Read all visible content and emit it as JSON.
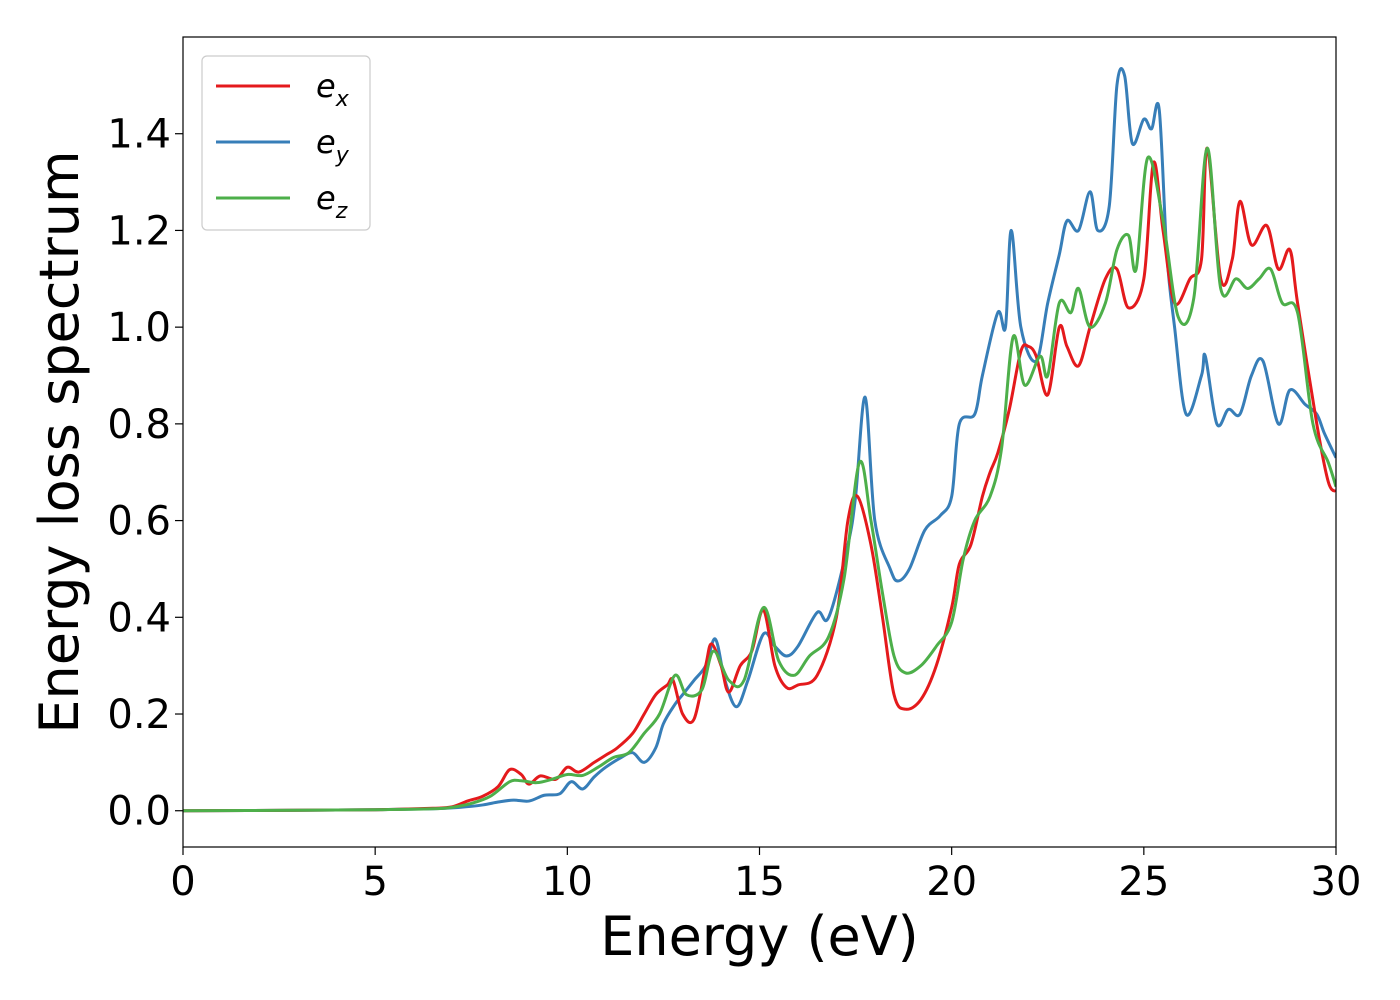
{
  "chart_data": {
    "type": "line",
    "xlabel": "Energy (eV)",
    "ylabel": "Energy loss spectrum",
    "xlim": [
      0,
      30
    ],
    "ylim": [
      -0.075,
      1.6
    ],
    "x_ticks": [
      "0",
      "5",
      "10",
      "15",
      "20",
      "25",
      "30"
    ],
    "y_ticks": [
      "0.0",
      "0.2",
      "0.4",
      "0.6",
      "0.8",
      "1.0",
      "1.2",
      "1.4"
    ],
    "grid": false,
    "legend_position": "top-left",
    "series": [
      {
        "name": "e_x",
        "label_base": "e",
        "label_sub": "x",
        "color": "#e41a1c",
        "points": [
          [
            0,
            0.0
          ],
          [
            3,
            0.001
          ],
          [
            5,
            0.002
          ],
          [
            6.5,
            0.005
          ],
          [
            7,
            0.008
          ],
          [
            7.4,
            0.02
          ],
          [
            7.8,
            0.03
          ],
          [
            8.2,
            0.05
          ],
          [
            8.5,
            0.085
          ],
          [
            8.8,
            0.075
          ],
          [
            9,
            0.055
          ],
          [
            9.3,
            0.072
          ],
          [
            9.7,
            0.065
          ],
          [
            10,
            0.09
          ],
          [
            10.3,
            0.08
          ],
          [
            10.7,
            0.1
          ],
          [
            11,
            0.115
          ],
          [
            11.3,
            0.13
          ],
          [
            11.7,
            0.16
          ],
          [
            12,
            0.2
          ],
          [
            12.3,
            0.24
          ],
          [
            12.6,
            0.26
          ],
          [
            12.75,
            0.27
          ],
          [
            13,
            0.2
          ],
          [
            13.3,
            0.19
          ],
          [
            13.6,
            0.3
          ],
          [
            13.75,
            0.345
          ],
          [
            14,
            0.3
          ],
          [
            14.2,
            0.245
          ],
          [
            14.5,
            0.3
          ],
          [
            14.8,
            0.33
          ],
          [
            15.1,
            0.415
          ],
          [
            15.4,
            0.3
          ],
          [
            15.7,
            0.255
          ],
          [
            16,
            0.26
          ],
          [
            16.5,
            0.28
          ],
          [
            17,
            0.4
          ],
          [
            17.3,
            0.6
          ],
          [
            17.55,
            0.65
          ],
          [
            17.9,
            0.55
          ],
          [
            18.2,
            0.4
          ],
          [
            18.5,
            0.24
          ],
          [
            18.8,
            0.21
          ],
          [
            19.2,
            0.23
          ],
          [
            19.6,
            0.3
          ],
          [
            20,
            0.42
          ],
          [
            20.2,
            0.51
          ],
          [
            20.5,
            0.55
          ],
          [
            20.8,
            0.65
          ],
          [
            21,
            0.7
          ],
          [
            21.2,
            0.74
          ],
          [
            21.5,
            0.83
          ],
          [
            21.8,
            0.95
          ],
          [
            22,
            0.96
          ],
          [
            22.2,
            0.94
          ],
          [
            22.5,
            0.86
          ],
          [
            22.8,
            1.0
          ],
          [
            23,
            0.96
          ],
          [
            23.3,
            0.92
          ],
          [
            23.6,
            1.0
          ],
          [
            24,
            1.1
          ],
          [
            24.3,
            1.12
          ],
          [
            24.6,
            1.04
          ],
          [
            25,
            1.1
          ],
          [
            25.25,
            1.34
          ],
          [
            25.5,
            1.2
          ],
          [
            25.8,
            1.05
          ],
          [
            26.2,
            1.1
          ],
          [
            26.5,
            1.14
          ],
          [
            26.65,
            1.37
          ],
          [
            27,
            1.1
          ],
          [
            27.3,
            1.14
          ],
          [
            27.5,
            1.26
          ],
          [
            27.8,
            1.17
          ],
          [
            28.2,
            1.21
          ],
          [
            28.5,
            1.12
          ],
          [
            28.8,
            1.16
          ],
          [
            29,
            1.05
          ],
          [
            29.5,
            0.8
          ],
          [
            29.8,
            0.68
          ],
          [
            30,
            0.66
          ]
        ]
      },
      {
        "name": "e_y",
        "label_base": "e",
        "label_sub": "y",
        "color": "#377eb8",
        "points": [
          [
            0,
            0.0
          ],
          [
            3,
            0.001
          ],
          [
            5,
            0.002
          ],
          [
            6.5,
            0.004
          ],
          [
            7.2,
            0.007
          ],
          [
            7.8,
            0.012
          ],
          [
            8.2,
            0.018
          ],
          [
            8.6,
            0.022
          ],
          [
            9,
            0.02
          ],
          [
            9.4,
            0.032
          ],
          [
            9.8,
            0.035
          ],
          [
            10.1,
            0.06
          ],
          [
            10.4,
            0.045
          ],
          [
            10.7,
            0.07
          ],
          [
            11,
            0.09
          ],
          [
            11.4,
            0.11
          ],
          [
            11.7,
            0.12
          ],
          [
            12,
            0.1
          ],
          [
            12.3,
            0.13
          ],
          [
            12.5,
            0.18
          ],
          [
            12.8,
            0.22
          ],
          [
            13,
            0.24
          ],
          [
            13.3,
            0.27
          ],
          [
            13.6,
            0.3
          ],
          [
            13.85,
            0.355
          ],
          [
            14.1,
            0.27
          ],
          [
            14.4,
            0.215
          ],
          [
            14.7,
            0.27
          ],
          [
            15.1,
            0.365
          ],
          [
            15.4,
            0.34
          ],
          [
            15.7,
            0.32
          ],
          [
            16,
            0.34
          ],
          [
            16.5,
            0.41
          ],
          [
            16.8,
            0.4
          ],
          [
            17.3,
            0.55
          ],
          [
            17.5,
            0.65
          ],
          [
            17.75,
            0.855
          ],
          [
            18,
            0.6
          ],
          [
            18.4,
            0.5
          ],
          [
            18.6,
            0.475
          ],
          [
            18.9,
            0.5
          ],
          [
            19.3,
            0.58
          ],
          [
            19.7,
            0.61
          ],
          [
            20,
            0.65
          ],
          [
            20.2,
            0.8
          ],
          [
            20.6,
            0.82
          ],
          [
            20.8,
            0.9
          ],
          [
            21.2,
            1.03
          ],
          [
            21.4,
            1.0
          ],
          [
            21.55,
            1.2
          ],
          [
            21.8,
            1.0
          ],
          [
            22.2,
            0.93
          ],
          [
            22.5,
            1.05
          ],
          [
            22.8,
            1.15
          ],
          [
            23,
            1.22
          ],
          [
            23.3,
            1.2
          ],
          [
            23.6,
            1.28
          ],
          [
            23.8,
            1.2
          ],
          [
            24.1,
            1.25
          ],
          [
            24.3,
            1.5
          ],
          [
            24.5,
            1.52
          ],
          [
            24.7,
            1.38
          ],
          [
            25,
            1.43
          ],
          [
            25.2,
            1.41
          ],
          [
            25.4,
            1.45
          ],
          [
            25.6,
            1.15
          ],
          [
            25.8,
            1.0
          ],
          [
            26.1,
            0.82
          ],
          [
            26.5,
            0.9
          ],
          [
            26.6,
            0.94
          ],
          [
            26.9,
            0.8
          ],
          [
            27.2,
            0.83
          ],
          [
            27.5,
            0.82
          ],
          [
            27.8,
            0.9
          ],
          [
            28.1,
            0.93
          ],
          [
            28.5,
            0.8
          ],
          [
            28.8,
            0.87
          ],
          [
            29.2,
            0.84
          ],
          [
            29.5,
            0.82
          ],
          [
            29.7,
            0.78
          ],
          [
            30,
            0.73
          ]
        ]
      },
      {
        "name": "e_z",
        "label_base": "e",
        "label_sub": "z",
        "color": "#4daf4a",
        "points": [
          [
            0,
            0.0
          ],
          [
            3,
            0.001
          ],
          [
            5,
            0.002
          ],
          [
            6.5,
            0.004
          ],
          [
            7,
            0.007
          ],
          [
            7.5,
            0.015
          ],
          [
            8,
            0.03
          ],
          [
            8.5,
            0.06
          ],
          [
            8.8,
            0.062
          ],
          [
            9.2,
            0.058
          ],
          [
            9.6,
            0.065
          ],
          [
            10,
            0.075
          ],
          [
            10.4,
            0.073
          ],
          [
            10.8,
            0.09
          ],
          [
            11.2,
            0.11
          ],
          [
            11.6,
            0.12
          ],
          [
            12,
            0.16
          ],
          [
            12.4,
            0.2
          ],
          [
            12.8,
            0.28
          ],
          [
            13.1,
            0.24
          ],
          [
            13.5,
            0.25
          ],
          [
            13.8,
            0.33
          ],
          [
            14.2,
            0.27
          ],
          [
            14.6,
            0.27
          ],
          [
            15.1,
            0.42
          ],
          [
            15.5,
            0.31
          ],
          [
            15.9,
            0.28
          ],
          [
            16.3,
            0.32
          ],
          [
            16.8,
            0.36
          ],
          [
            17.2,
            0.48
          ],
          [
            17.6,
            0.72
          ],
          [
            17.9,
            0.6
          ],
          [
            18.2,
            0.45
          ],
          [
            18.5,
            0.32
          ],
          [
            18.8,
            0.285
          ],
          [
            19.2,
            0.3
          ],
          [
            19.6,
            0.34
          ],
          [
            20,
            0.39
          ],
          [
            20.3,
            0.52
          ],
          [
            20.6,
            0.6
          ],
          [
            21,
            0.65
          ],
          [
            21.3,
            0.75
          ],
          [
            21.6,
            0.98
          ],
          [
            21.9,
            0.88
          ],
          [
            22.3,
            0.94
          ],
          [
            22.5,
            0.9
          ],
          [
            22.8,
            1.05
          ],
          [
            23.1,
            1.03
          ],
          [
            23.3,
            1.08
          ],
          [
            23.6,
            1.0
          ],
          [
            24,
            1.05
          ],
          [
            24.3,
            1.16
          ],
          [
            24.6,
            1.19
          ],
          [
            24.8,
            1.12
          ],
          [
            25.1,
            1.35
          ],
          [
            25.5,
            1.22
          ],
          [
            25.9,
            1.02
          ],
          [
            26.3,
            1.06
          ],
          [
            26.65,
            1.37
          ],
          [
            27,
            1.08
          ],
          [
            27.4,
            1.1
          ],
          [
            27.7,
            1.08
          ],
          [
            28,
            1.1
          ],
          [
            28.3,
            1.12
          ],
          [
            28.6,
            1.05
          ],
          [
            29,
            1.03
          ],
          [
            29.4,
            0.8
          ],
          [
            29.8,
            0.72
          ],
          [
            30,
            0.67
          ]
        ]
      }
    ]
  }
}
